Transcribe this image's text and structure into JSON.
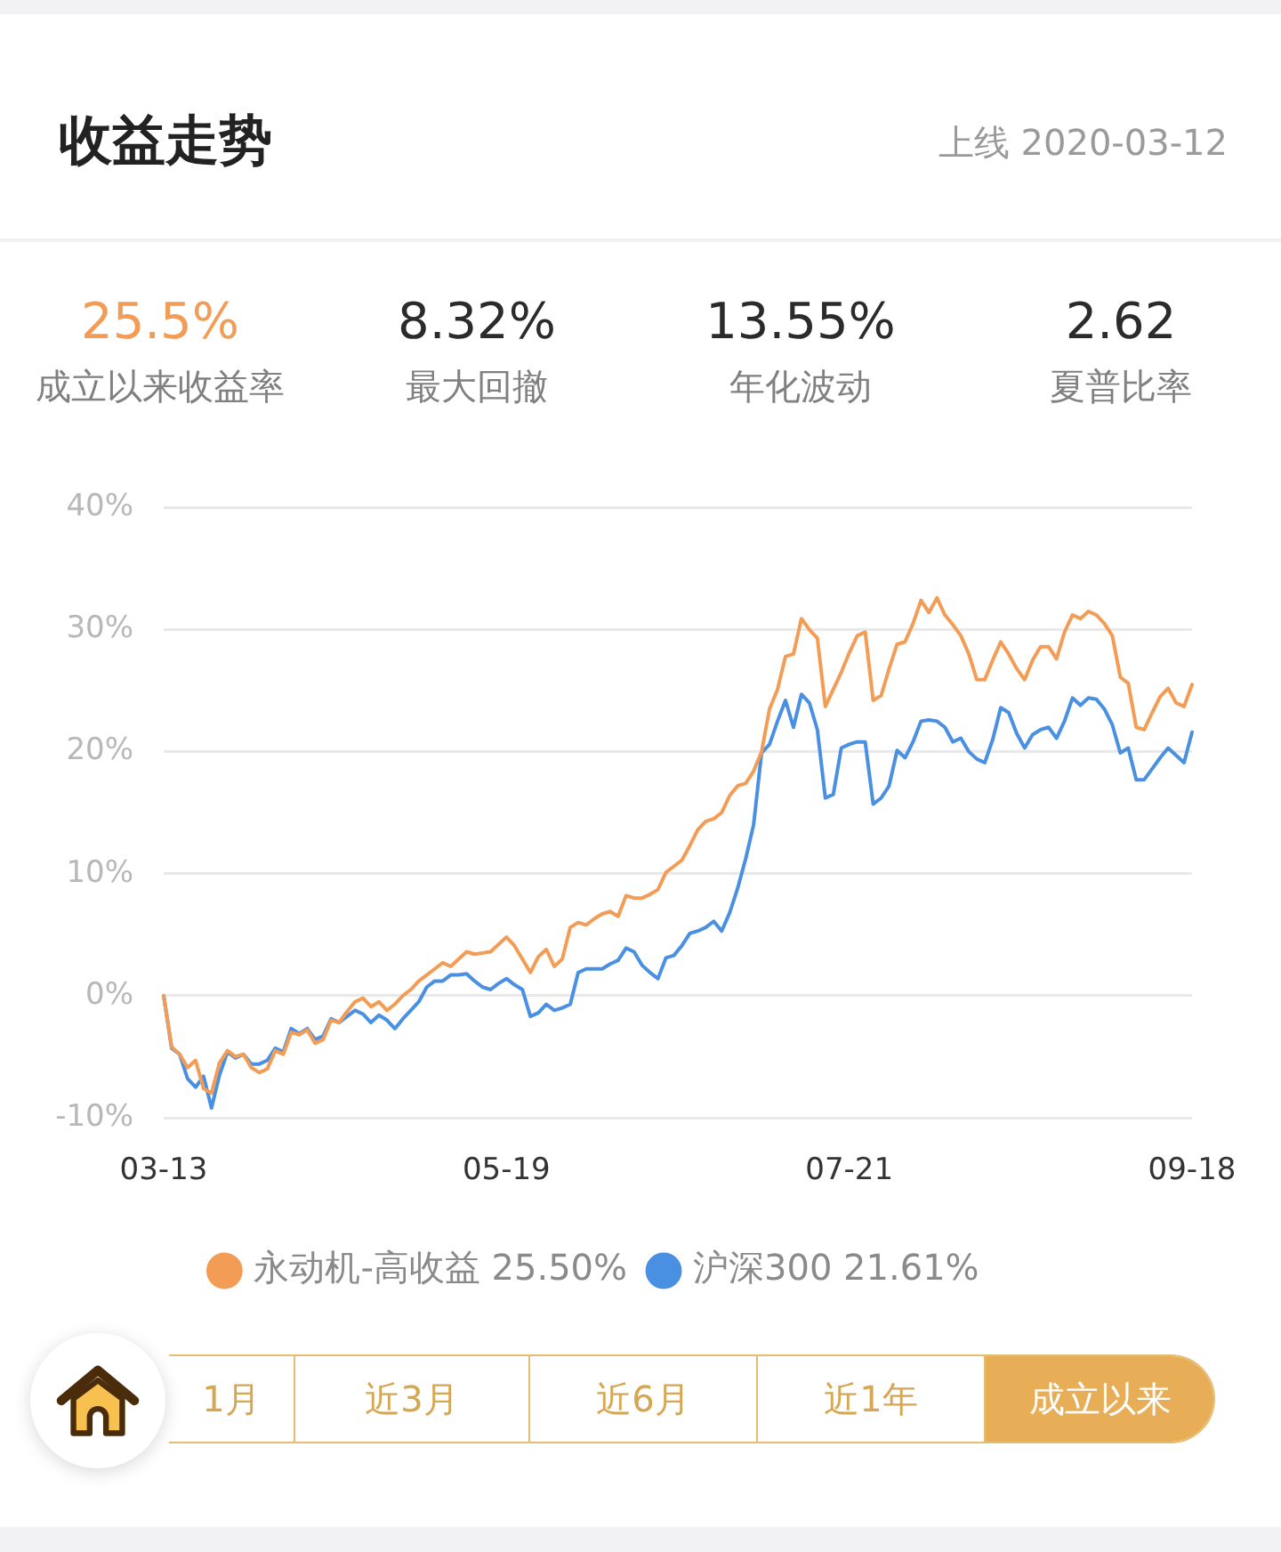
{
  "chart_data": {
    "type": "line",
    "title": "收益走势",
    "subtitle": "上线 2020-03-12",
    "annotations": [
      "25.5%",
      "成立以来收益率",
      "8.32%",
      "最大回撤",
      "13.55%",
      "年化波动",
      "2.62",
      "夏普比率",
      "1月",
      "近3月",
      "近6月",
      "近1年",
      "成立以来"
    ],
    "categories": [
      "03-13",
      null,
      null,
      null,
      null,
      null,
      null,
      null,
      null,
      null,
      null,
      null,
      null,
      null,
      null,
      null,
      null,
      null,
      null,
      null,
      null,
      null,
      null,
      null,
      null,
      null,
      null,
      null,
      null,
      null,
      null,
      null,
      null,
      null,
      null,
      null,
      null,
      null,
      null,
      null,
      null,
      null,
      null,
      "05-19",
      null,
      null,
      null,
      null,
      null,
      null,
      null,
      null,
      null,
      null,
      null,
      null,
      null,
      null,
      null,
      null,
      null,
      null,
      null,
      null,
      null,
      null,
      null,
      null,
      null,
      null,
      null,
      null,
      null,
      null,
      null,
      null,
      null,
      null,
      null,
      null,
      null,
      null,
      null,
      null,
      null,
      null,
      "07-21",
      null,
      null,
      null,
      null,
      null,
      null,
      null,
      null,
      null,
      null,
      null,
      null,
      null,
      null,
      null,
      null,
      null,
      null,
      null,
      null,
      null,
      null,
      null,
      null,
      null,
      null,
      null,
      null,
      null,
      null,
      null,
      null,
      null,
      null,
      null,
      null,
      null,
      null,
      null,
      null,
      null,
      null,
      "09-18"
    ],
    "series": [
      {
        "name": "永动机-高收益 25.50%",
        "color": "#f39c56",
        "values": [
          0,
          -4.2,
          -4.8,
          -5.9,
          -5.3,
          -7.6,
          -8.0,
          -5.5,
          -4.5,
          -5.0,
          -4.8,
          -5.9,
          -6.3,
          -6.0,
          -4.5,
          -4.8,
          -3.0,
          -3.2,
          -2.8,
          -3.9,
          -3.6,
          -2.0,
          -2.2,
          -1.3,
          -0.5,
          -0.2,
          -0.9,
          -0.5,
          -1.2,
          -0.7,
          0.0,
          0.5,
          1.2,
          1.7,
          2.2,
          2.7,
          2.4,
          3.0,
          3.6,
          3.4,
          3.5,
          3.6,
          4.2,
          4.8,
          4.1,
          3.0,
          1.9,
          3.2,
          3.8,
          2.4,
          3.0,
          5.6,
          6.0,
          5.8,
          6.3,
          6.7,
          6.9,
          6.5,
          8.2,
          8.0,
          8.0,
          8.3,
          8.7,
          10.1,
          10.6,
          11.1,
          12.3,
          13.6,
          14.3,
          14.5,
          15.0,
          16.4,
          17.2,
          17.4,
          18.4,
          20.0,
          23.5,
          25.1,
          27.8,
          28.0,
          30.9,
          30.0,
          29.3,
          23.7,
          25.1,
          26.5,
          28.1,
          29.5,
          29.8,
          24.2,
          24.6,
          26.8,
          28.8,
          29.0,
          30.5,
          32.4,
          31.4,
          32.6,
          31.2,
          30.4,
          29.5,
          28.0,
          25.9,
          25.9,
          27.5,
          29.0,
          28.0,
          26.8,
          25.9,
          27.5,
          28.6,
          28.6,
          27.6,
          29.8,
          31.2,
          30.9,
          31.5,
          31.2,
          30.5,
          29.5,
          26.1,
          25.6,
          22.0,
          21.8,
          23.2,
          24.5,
          25.2,
          24.0,
          23.7,
          25.5
        ]
      },
      {
        "name": "沪深300 21.61%",
        "color": "#4a90e2",
        "values": [
          0,
          -4.3,
          -4.8,
          -6.8,
          -7.5,
          -6.6,
          -9.2,
          -6.5,
          -4.6,
          -5.1,
          -4.8,
          -5.6,
          -5.6,
          -5.3,
          -4.3,
          -4.6,
          -2.7,
          -3.1,
          -2.7,
          -3.6,
          -3.3,
          -1.9,
          -2.2,
          -1.7,
          -1.2,
          -1.5,
          -2.2,
          -1.6,
          -2.0,
          -2.7,
          -1.9,
          -1.2,
          -0.5,
          0.7,
          1.2,
          1.2,
          1.7,
          1.7,
          1.8,
          1.2,
          0.7,
          0.5,
          1.0,
          1.4,
          0.9,
          0.5,
          -1.7,
          -1.4,
          -0.7,
          -1.2,
          -1.0,
          -0.7,
          1.9,
          2.2,
          2.2,
          2.2,
          2.6,
          2.9,
          3.9,
          3.6,
          2.5,
          1.9,
          1.4,
          3.1,
          3.3,
          4.1,
          5.1,
          5.3,
          5.6,
          6.1,
          5.3,
          6.8,
          8.8,
          11.2,
          14.0,
          19.9,
          20.6,
          22.5,
          24.2,
          22.0,
          24.7,
          24.0,
          21.8,
          16.2,
          16.5,
          20.3,
          20.6,
          20.8,
          20.8,
          15.7,
          16.2,
          17.2,
          20.1,
          19.5,
          20.8,
          22.5,
          22.6,
          22.5,
          22.0,
          20.8,
          21.1,
          20.0,
          19.4,
          19.1,
          21.0,
          23.6,
          23.2,
          21.5,
          20.3,
          21.4,
          21.8,
          22.0,
          21.1,
          22.5,
          24.4,
          23.8,
          24.4,
          24.3,
          23.5,
          22.2,
          19.9,
          20.3,
          17.7,
          17.7,
          18.6,
          19.5,
          20.3,
          19.7,
          19.1,
          21.6
        ]
      }
    ],
    "ylim": [
      -10,
      40
    ],
    "yticks": [
      {
        "value": -10,
        "label": "-10%"
      },
      {
        "value": 0,
        "label": "0%"
      },
      {
        "value": 10,
        "label": "10%"
      },
      {
        "value": 20,
        "label": "20%"
      },
      {
        "value": 30,
        "label": "30%"
      },
      {
        "value": 40,
        "label": "40%"
      }
    ],
    "grid": "y",
    "legend": "bottom",
    "marker": "none",
    "line_style": "solid"
  }
}
